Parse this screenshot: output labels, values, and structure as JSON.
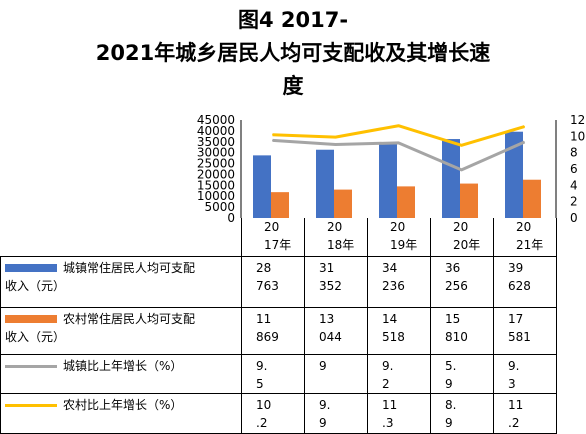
{
  "title_lines": [
    "图4  2017-",
    "2021年城乡居民人均可支配收及其增长速",
    "度"
  ],
  "chart_data": {
    "type": "bar",
    "title": "图4 2017-2021年城乡居民人均可支配收及其增长速度",
    "categories": [
      "2017年",
      "2018年",
      "2019年",
      "2020年",
      "2021年"
    ],
    "category_labels": [
      [
        "20",
        "17年"
      ],
      [
        "20",
        "18年"
      ],
      [
        "20",
        "19年"
      ],
      [
        "20",
        "20年"
      ],
      [
        "20",
        "21年"
      ]
    ],
    "y_left": {
      "min": 0,
      "max": 45000,
      "step": 5000,
      "ticks": [
        "0",
        "5000",
        "10000",
        "15000",
        "20000",
        "25000",
        "30000",
        "35000",
        "40000",
        "45000"
      ]
    },
    "y_right": {
      "min": 0,
      "max": 12,
      "step": 2,
      "ticks": [
        "0",
        "2",
        "4",
        "6",
        "8",
        "10",
        "12"
      ]
    },
    "series": [
      {
        "name": "城镇常住居民人均可支配收入（元）",
        "kind": "bar",
        "axis": "left",
        "color": "#4472C4",
        "values": [
          28763,
          31352,
          34236,
          36256,
          39628
        ],
        "cells": [
          "28\n763",
          "31\n352",
          "34\n236",
          "36\n256",
          "39\n628"
        ]
      },
      {
        "name": "农村常住居民人均可支配收入（元）",
        "kind": "bar",
        "axis": "left",
        "color": "#ED7D31",
        "values": [
          11869,
          13044,
          14518,
          15810,
          17581
        ],
        "cells": [
          "11\n869",
          "13\n044",
          "14\n518",
          "15\n810",
          "17\n581"
        ]
      },
      {
        "name": "城镇比上年增长（%）",
        "kind": "line",
        "axis": "right",
        "color": "#A5A5A5",
        "values": [
          9.5,
          9,
          9.2,
          5.9,
          9.3
        ],
        "cells": [
          "9.\n5",
          "9",
          "9.\n2",
          "5.\n9",
          "9.\n3"
        ]
      },
      {
        "name": "农村比上年增长（%）",
        "kind": "line",
        "axis": "right",
        "color": "#FFC000",
        "values": [
          10.2,
          9.9,
          11.3,
          8.9,
          11.2
        ],
        "cells": [
          "10\n.2",
          "9.\n9",
          "11\n.3",
          "8.\n9",
          "11\n.2"
        ]
      }
    ],
    "legend_labels": [
      [
        "城镇常住居民人均可支配",
        "收入（元）"
      ],
      [
        "农村常住居民人均可支配",
        "收入（元）"
      ],
      [
        "城镇比上年增长（%）"
      ],
      [
        "农村比上年增长（%）"
      ]
    ],
    "grid": false,
    "legend": "table"
  }
}
